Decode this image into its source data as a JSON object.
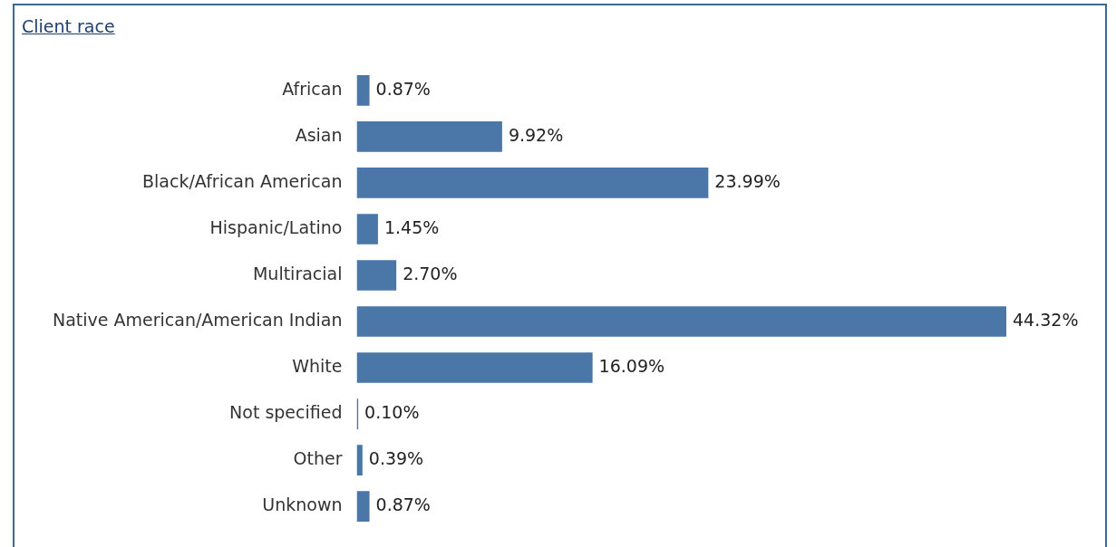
{
  "chart_data": {
    "type": "bar",
    "orientation": "horizontal",
    "title": "Client race",
    "categories": [
      "African",
      "Asian",
      "Black/African American",
      "Hispanic/Latino",
      "Multiracial",
      "Native American/American Indian",
      "White",
      "Not specified",
      "Other",
      "Unknown"
    ],
    "values": [
      0.87,
      9.92,
      23.99,
      1.45,
      2.7,
      44.32,
      16.09,
      0.1,
      0.39,
      0.87
    ],
    "value_labels": [
      "0.87%",
      "9.92%",
      "23.99%",
      "1.45%",
      "2.70%",
      "44.32%",
      "16.09%",
      "0.10%",
      "0.39%",
      "0.87%"
    ],
    "color": "#4a76a8",
    "tick_labels": "y"
  }
}
